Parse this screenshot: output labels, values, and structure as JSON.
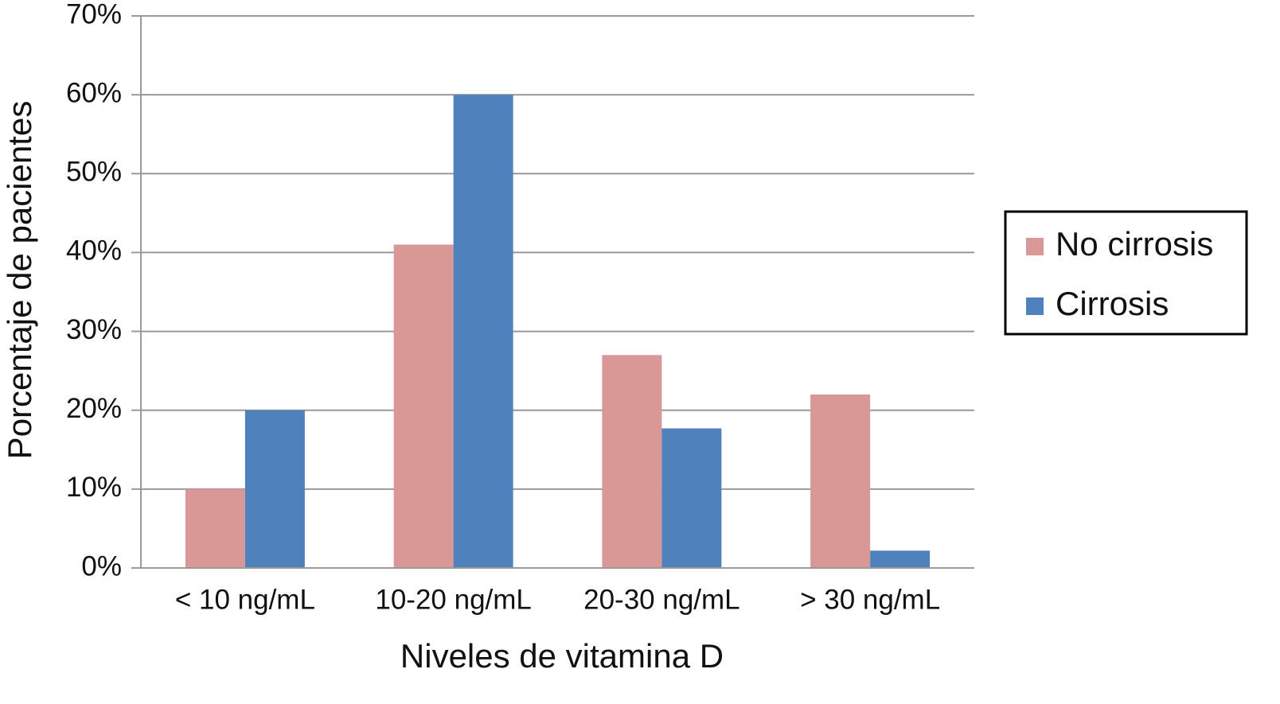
{
  "chart_data": {
    "type": "bar",
    "x_label": "Niveles de vitamina D",
    "y_label": "Porcentaje de pacientes",
    "categories": [
      "< 10 ng/mL",
      "10-20 ng/mL",
      "20-30 ng/mL",
      "> 30 ng/mL"
    ],
    "series": [
      {
        "name": "No cirrosis",
        "color": "#d99795",
        "values": [
          10,
          41,
          27,
          22
        ]
      },
      {
        "name": "Cirrosis",
        "color": "#4f81bd",
        "values": [
          20,
          60,
          17.7,
          2.2
        ]
      }
    ],
    "ylim": [
      0,
      70
    ],
    "yticks": [
      {
        "value": 0,
        "label": "0%"
      },
      {
        "value": 10,
        "label": "10%"
      },
      {
        "value": 20,
        "label": "20%"
      },
      {
        "value": 30,
        "label": "30%"
      },
      {
        "value": 40,
        "label": "40%"
      },
      {
        "value": 50,
        "label": "50%"
      },
      {
        "value": 60,
        "label": "60%"
      },
      {
        "value": 70,
        "label": "70%"
      }
    ],
    "grid": true,
    "legend": "right"
  }
}
